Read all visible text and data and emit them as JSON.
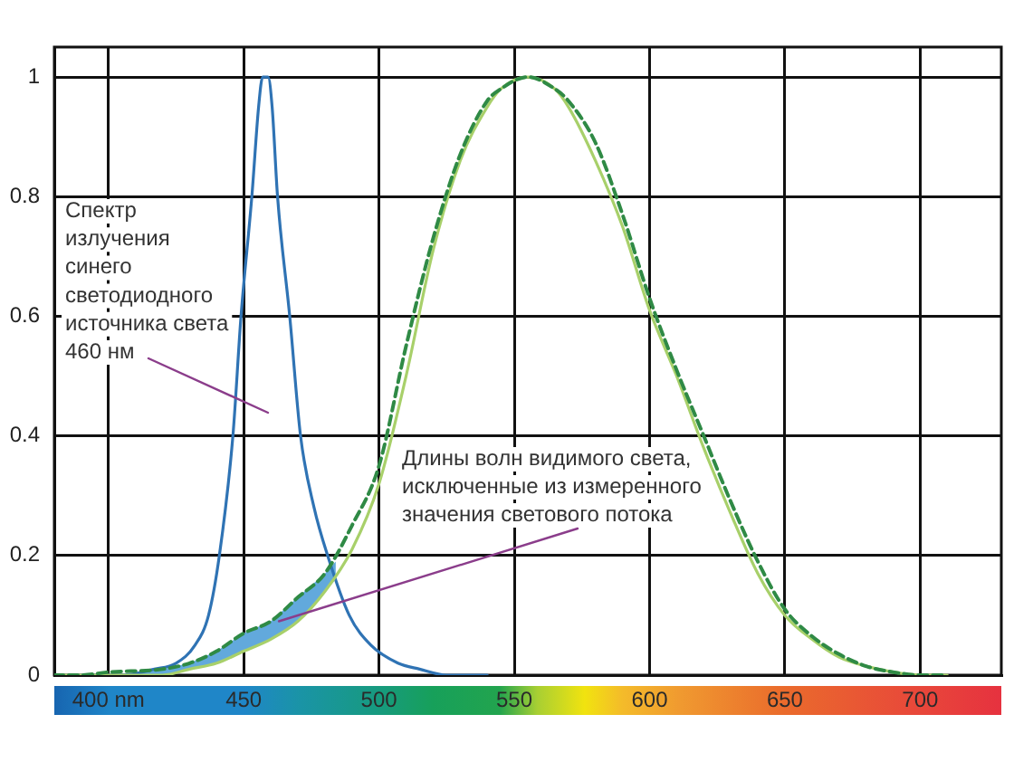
{
  "chart_data": {
    "type": "line",
    "xlim": [
      380,
      730
    ],
    "xticks": [
      {
        "value": 400,
        "label": "400 nm"
      },
      450,
      500,
      550,
      600,
      650,
      700
    ],
    "ylim": [
      0,
      1.05
    ],
    "yticks": [
      0,
      0.2,
      0.4,
      0.6,
      0.8,
      1
    ],
    "grid": true,
    "series": [
      {
        "color": "#62a9dc",
        "x": [
          411,
          420,
          430,
          440,
          450,
          460,
          470,
          480,
          484
        ],
        "values": [
          null,
          null,
          null,
          null,
          null,
          null,
          null,
          null,
          null
        ],
        "lower": [
          0,
          0,
          0.01,
          0.02,
          0.04,
          0.06,
          0.09,
          0.14,
          0.16
        ],
        "upper": [
          0.005,
          0.01,
          0.02,
          0.04,
          0.07,
          0.09,
          0.13,
          0.17,
          0.19
        ]
      },
      {
        "color": "#2f73b4",
        "x": [
          390,
          405,
          417,
          425,
          432,
          437,
          441,
          446,
          449,
          453,
          455.5,
          457,
          458,
          459,
          460.5,
          462.5,
          467,
          471,
          476,
          481,
          489,
          497,
          507,
          515,
          525,
          540
        ],
        "values": [
          0,
          0,
          0.01,
          0.02,
          0.05,
          0.1,
          0.2,
          0.4,
          0.6,
          0.8,
          0.95,
          1,
          1,
          1,
          0.95,
          0.8,
          0.6,
          0.4,
          0.28,
          0.2,
          0.1,
          0.05,
          0.02,
          0.01,
          0,
          0
        ]
      },
      {
        "color": "#a8d06a",
        "x": [
          380,
          400,
          420,
          430,
          440,
          450,
          460,
          470,
          480,
          490,
          500,
          510,
          520,
          530,
          540,
          545,
          555,
          565,
          570,
          580,
          590,
          600,
          610,
          620,
          630,
          640,
          650,
          660,
          670,
          680,
          690,
          700,
          710
        ],
        "values": [
          0,
          0,
          0,
          0.01,
          0.02,
          0.04,
          0.06,
          0.09,
          0.14,
          0.21,
          0.32,
          0.5,
          0.71,
          0.86,
          0.95,
          0.98,
          1,
          0.98,
          0.95,
          0.86,
          0.75,
          0.61,
          0.5,
          0.38,
          0.27,
          0.17,
          0.1,
          0.06,
          0.03,
          0.015,
          0.005,
          0,
          0
        ]
      },
      {
        "color": "#2f8a45",
        "line_style": "dashed",
        "x": [
          380,
          390,
          400,
          420,
          430,
          440,
          450,
          460,
          470,
          480,
          490,
          500,
          510,
          520,
          530,
          540,
          545,
          555,
          565,
          570,
          580,
          590,
          600,
          610,
          620,
          630,
          640,
          650,
          660,
          670,
          680,
          690,
          700,
          710
        ],
        "values": [
          0,
          0,
          0.005,
          0.01,
          0.02,
          0.04,
          0.07,
          0.09,
          0.13,
          0.17,
          0.25,
          0.35,
          0.55,
          0.73,
          0.87,
          0.96,
          0.98,
          1,
          0.98,
          0.96,
          0.89,
          0.77,
          0.63,
          0.51,
          0.4,
          0.29,
          0.19,
          0.11,
          0.065,
          0.035,
          0.015,
          0.005,
          0,
          0
        ]
      }
    ],
    "annotations": [
      "Спектр\nизлучения\nсинего\nсветодиодного\nисточника света\n460 нм",
      {
        "text": "Длины волн видимого света,\nисключенные из измеренного\nзначения светового потока",
        "x": 463,
        "y": 0.09
      }
    ]
  }
}
